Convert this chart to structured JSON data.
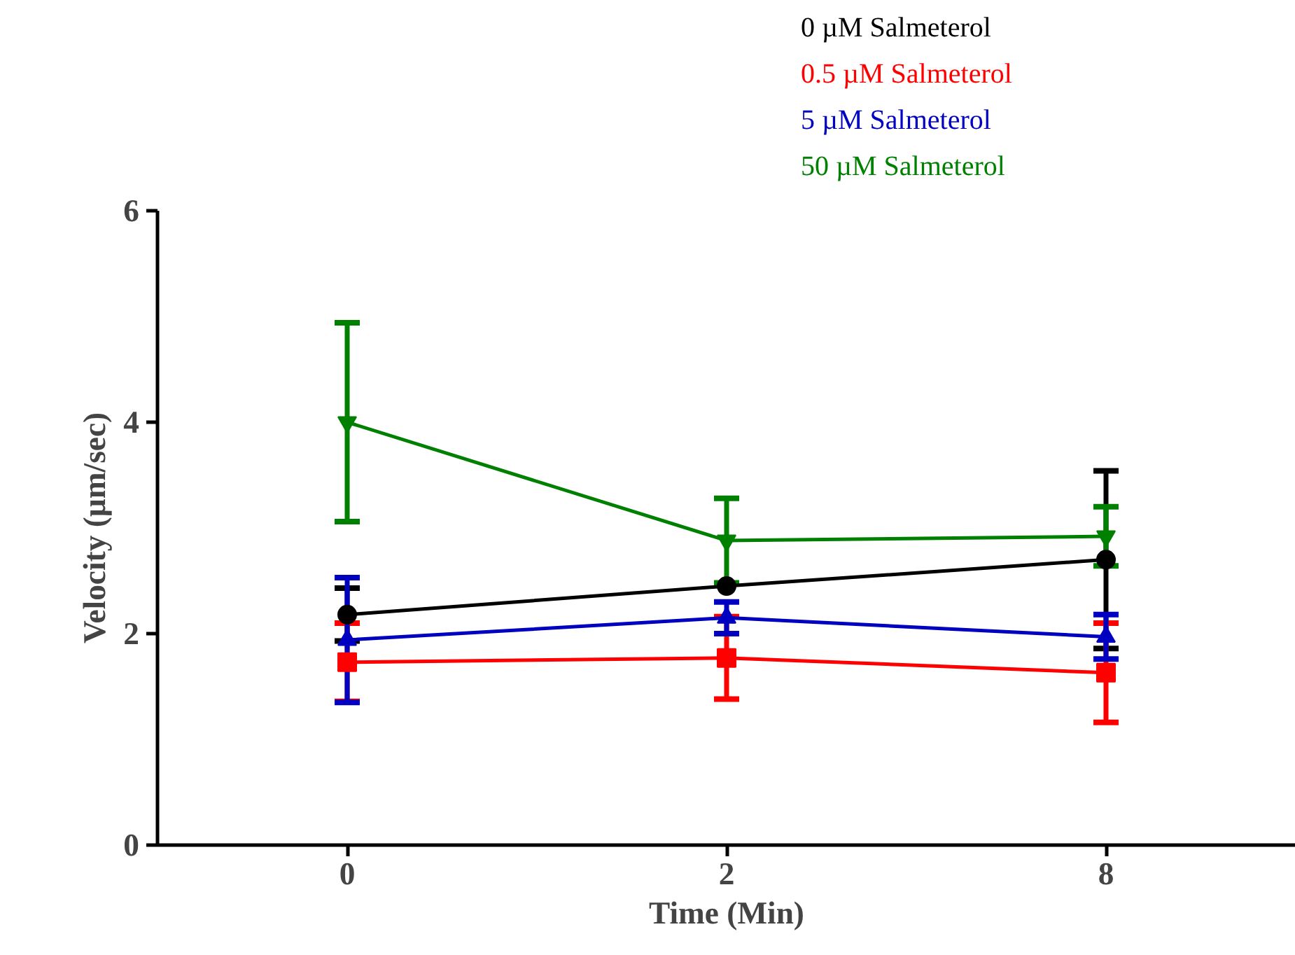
{
  "chart_data": {
    "type": "line",
    "xlabel": "Time (Min)",
    "ylabel": "Velocity (µm/sec)",
    "categories": [
      "0",
      "2",
      "8"
    ],
    "ylim": [
      0,
      6
    ],
    "yticks": [
      0,
      2,
      4,
      6
    ],
    "grid": false,
    "legend": "top",
    "series": [
      {
        "name": "0 µM Salmeterol",
        "color": "#000000",
        "marker": "circle",
        "values": [
          2.18,
          2.45,
          2.7
        ],
        "errors": [
          0.25,
          null,
          0.84
        ]
      },
      {
        "name": "0.5 µM Salmeterol",
        "color": "#ff0000",
        "marker": "square",
        "values": [
          1.73,
          1.77,
          1.63
        ],
        "errors": [
          0.37,
          0.39,
          0.47
        ]
      },
      {
        "name": "5 µM Salmeterol",
        "color": "#0000c0",
        "marker": "triangle",
        "values": [
          1.94,
          2.15,
          1.97
        ],
        "errors": [
          0.59,
          0.15,
          0.21
        ]
      },
      {
        "name": "50 µM Salmeterol",
        "color": "#008000",
        "marker": "triangle_down",
        "values": [
          4.0,
          2.88,
          2.92
        ],
        "errors": [
          0.94,
          0.4,
          0.28
        ]
      }
    ]
  }
}
